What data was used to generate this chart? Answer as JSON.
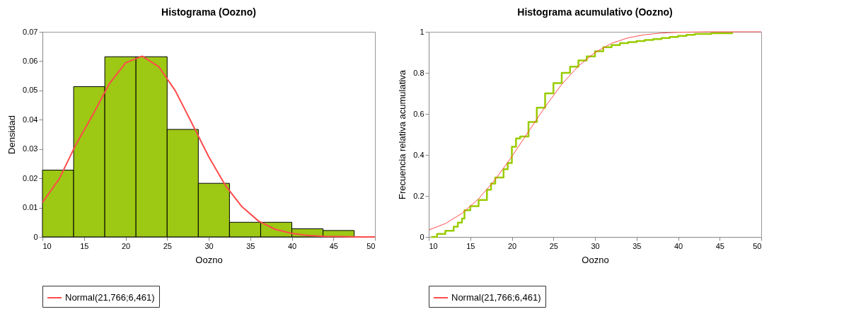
{
  "chart_data": [
    {
      "type": "histogram",
      "title": "Histograma  (Oozno)",
      "xlabel": "Oozno",
      "ylabel": "Densidad",
      "bins": [
        10,
        13.75,
        17.5,
        21.25,
        25,
        28.75,
        32.5,
        36.25,
        40,
        43.75,
        47.5
      ],
      "values": [
        0.0228,
        0.0513,
        0.0615,
        0.0615,
        0.0367,
        0.0183,
        0.005,
        0.005,
        0.0028,
        0.0022
      ],
      "color": "#9dc814",
      "series": [
        {
          "name": "Normal(21,766;6,461)",
          "type": "line",
          "color": "#ff4b4b",
          "x": [
            10,
            12,
            14,
            16,
            18,
            20,
            22,
            24,
            26,
            28,
            30,
            32,
            34,
            36,
            38,
            40,
            42,
            44,
            46,
            48,
            50
          ],
          "values": [
            0.0118,
            0.0197,
            0.0314,
            0.0414,
            0.0521,
            0.0594,
            0.0617,
            0.0581,
            0.0498,
            0.0387,
            0.0274,
            0.0176,
            0.0103,
            0.0054,
            0.0026,
            0.0012,
            0.0005,
            0.0002,
            0.0001,
            0,
            0
          ]
        }
      ],
      "xlim": [
        10,
        50
      ],
      "xticks": [
        10,
        15,
        20,
        25,
        30,
        35,
        40,
        45,
        50
      ],
      "ylim": [
        0,
        0.07
      ],
      "yticks": [
        0,
        0.01,
        0.02,
        0.03,
        0.04,
        0.05,
        0.06,
        0.07
      ],
      "grid": false,
      "legend": "bottom"
    },
    {
      "type": "line",
      "title": "Histograma acumulativo  (Oozno)",
      "xlabel": "Oozno",
      "ylabel": "Frecuencia relativa  acumulativa",
      "series": [
        {
          "type": "step",
          "color": "#99cc00",
          "x": [
            10.3,
            11,
            12,
            13,
            13.5,
            14,
            14.3,
            15,
            16,
            17,
            17.5,
            18,
            19,
            19.5,
            20,
            20.5,
            21,
            22,
            23,
            24,
            25,
            26,
            27,
            28,
            29,
            30,
            31,
            32,
            33,
            34,
            35,
            36,
            37,
            38,
            39,
            40,
            41,
            42,
            44,
            46.5
          ],
          "values": [
            0,
            0.015,
            0.03,
            0.05,
            0.07,
            0.09,
            0.13,
            0.15,
            0.18,
            0.23,
            0.26,
            0.29,
            0.33,
            0.36,
            0.44,
            0.48,
            0.49,
            0.56,
            0.63,
            0.7,
            0.75,
            0.8,
            0.83,
            0.86,
            0.88,
            0.905,
            0.925,
            0.935,
            0.945,
            0.95,
            0.955,
            0.96,
            0.965,
            0.97,
            0.975,
            0.98,
            0.985,
            0.99,
            0.993,
            0.997
          ]
        },
        {
          "name": "Normal(21,766;6,461)",
          "type": "line",
          "color": "#ff4b4b",
          "x": [
            10,
            12,
            14,
            16,
            18,
            20,
            22,
            24,
            26,
            28,
            30,
            32,
            34,
            36,
            38,
            40,
            42,
            44,
            46,
            48,
            50
          ],
          "values": [
            0.034,
            0.065,
            0.115,
            0.186,
            0.28,
            0.392,
            0.514,
            0.634,
            0.744,
            0.833,
            0.899,
            0.944,
            0.971,
            0.986,
            0.994,
            0.998,
            0.999,
            1,
            1,
            1,
            1
          ]
        }
      ],
      "xlim": [
        10,
        50
      ],
      "xticks": [
        10,
        15,
        20,
        25,
        30,
        35,
        40,
        45,
        50
      ],
      "ylim": [
        0,
        1
      ],
      "yticks": [
        0,
        0.2,
        0.4,
        0.6,
        0.8,
        1
      ],
      "grid": false,
      "legend": "bottom"
    }
  ]
}
